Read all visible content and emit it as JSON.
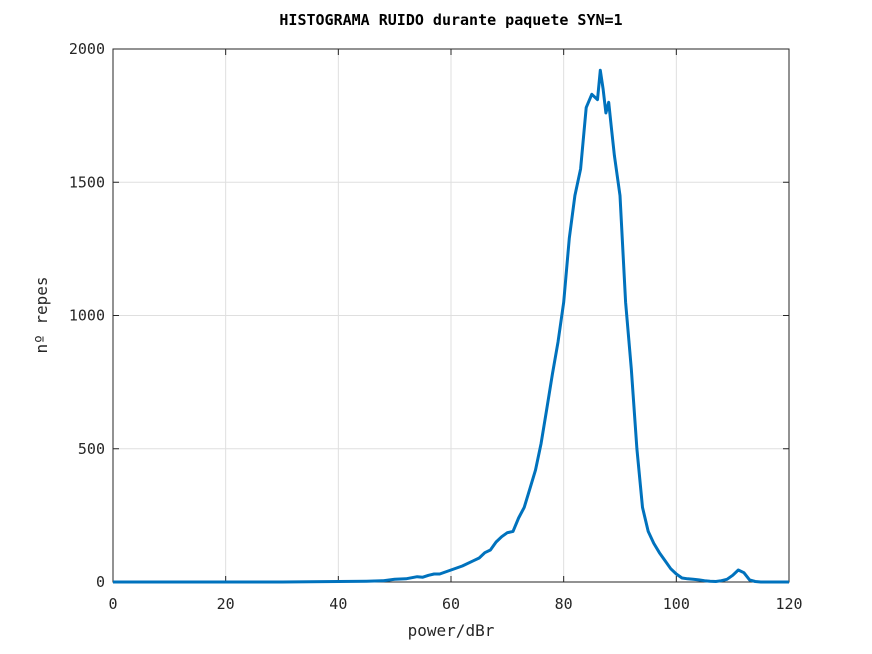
{
  "chart_data": {
    "type": "line",
    "title": "HISTOGRAMA RUIDO durante paquete SYN=1",
    "xlabel": "power/dBr",
    "ylabel": "nº repes",
    "xlim": [
      0,
      120
    ],
    "ylim": [
      0,
      2000
    ],
    "xticks": [
      0,
      20,
      40,
      60,
      80,
      100,
      120
    ],
    "yticks": [
      0,
      500,
      1000,
      1500,
      2000
    ],
    "grid": true,
    "line_color": "#0072BD",
    "series": [
      {
        "x": [
          0,
          30,
          40,
          45,
          48,
          50,
          52,
          54,
          55,
          56,
          57,
          58,
          60,
          62,
          64,
          65,
          66,
          67,
          68,
          69,
          70,
          71,
          72,
          73,
          74,
          75,
          76,
          77,
          78,
          79,
          80,
          81,
          82,
          83,
          84,
          85,
          86,
          86.5,
          87,
          87.5,
          88,
          88.5,
          89,
          90,
          91,
          92,
          93,
          94,
          95,
          96,
          97,
          98,
          99,
          100,
          101,
          102,
          103,
          104,
          105,
          106,
          107,
          108,
          109,
          110,
          111,
          112,
          113,
          114,
          115,
          120
        ],
        "y": [
          0,
          0,
          2,
          3,
          5,
          10,
          12,
          20,
          18,
          25,
          30,
          30,
          45,
          60,
          80,
          90,
          110,
          120,
          150,
          170,
          185,
          190,
          240,
          280,
          350,
          420,
          520,
          650,
          780,
          900,
          1050,
          1290,
          1450,
          1550,
          1780,
          1830,
          1810,
          1920,
          1850,
          1760,
          1800,
          1700,
          1600,
          1450,
          1050,
          800,
          500,
          280,
          190,
          145,
          110,
          80,
          50,
          30,
          15,
          12,
          10,
          8,
          5,
          3,
          2,
          5,
          10,
          25,
          45,
          35,
          8,
          2,
          0,
          0
        ]
      }
    ]
  }
}
